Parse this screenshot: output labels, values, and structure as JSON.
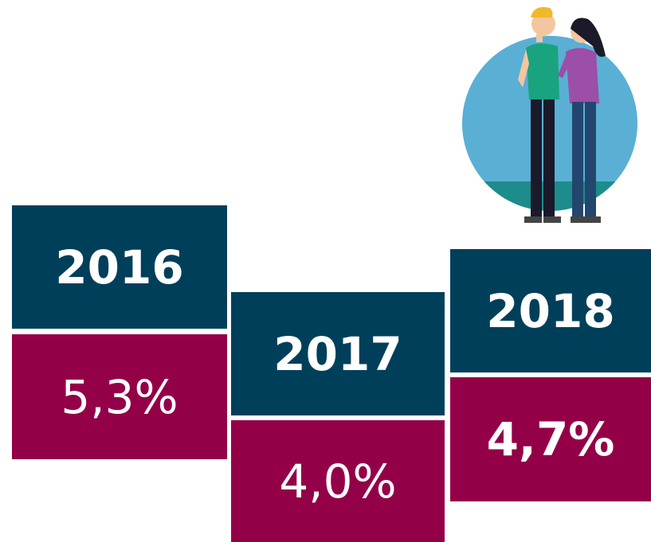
{
  "blocks": [
    {
      "year": "2016",
      "value": "5,3%"
    },
    {
      "year": "2017",
      "value": "4,0%"
    },
    {
      "year": "2018",
      "value": "4,7%"
    }
  ]
}
